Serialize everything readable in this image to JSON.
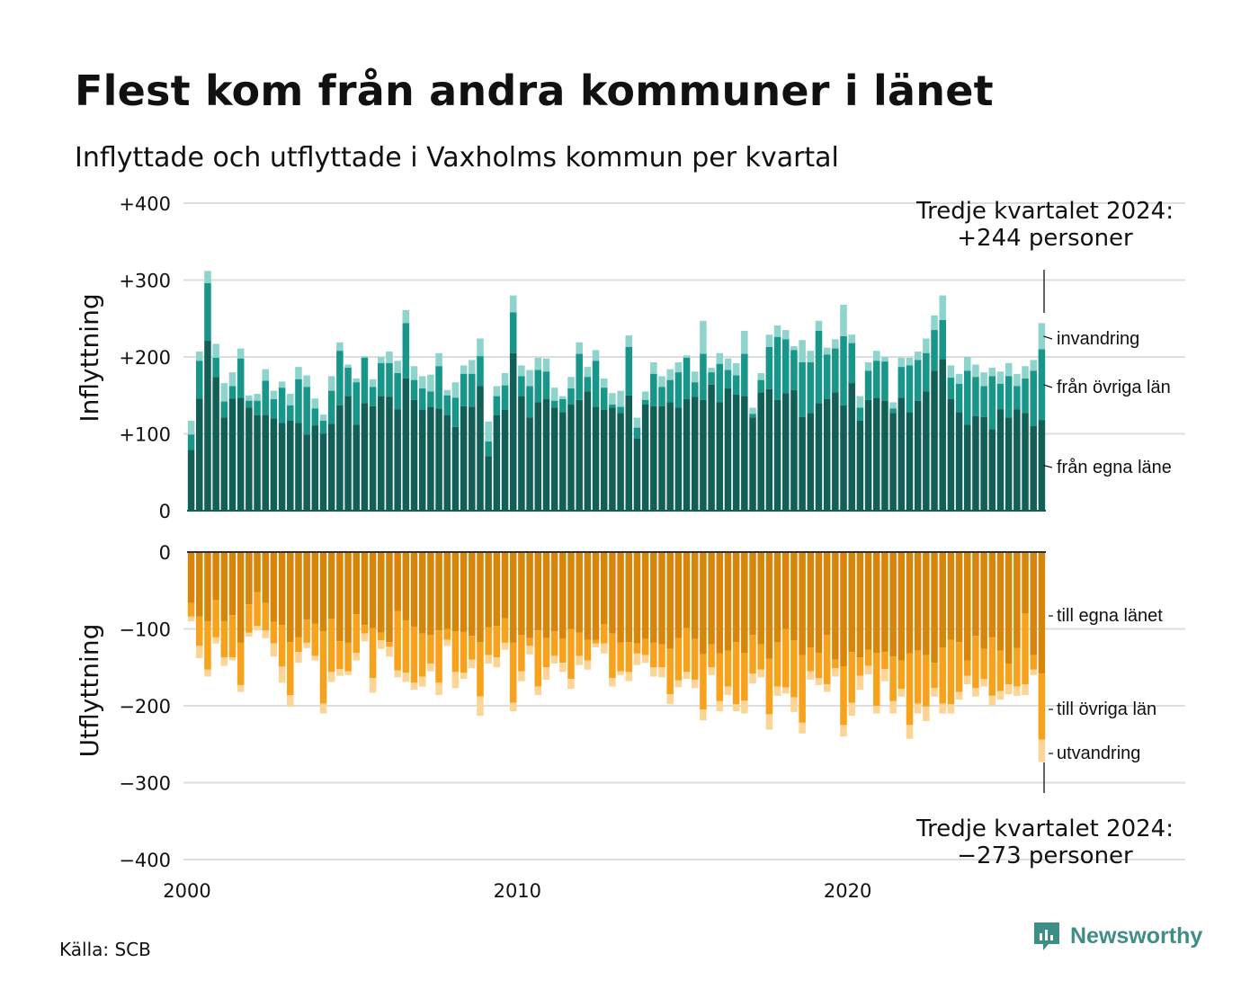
{
  "header": {
    "title": "Flest kom från andra kommuner i länet",
    "subtitle": "Inflyttade och utflyttade i Vaxholms kommun per kvartal"
  },
  "footer": {
    "source": "Källa: SCB",
    "brand": "Newsworthy"
  },
  "colors": {
    "in_own": "#125f58",
    "in_other": "#18968a",
    "in_imm": "#8fd4cc",
    "out_own": "#d6860a",
    "out_other": "#f7a21d",
    "out_emi": "#fbd496",
    "grid": "#dddddd",
    "zero": "#2a2f3a",
    "brand": "#3d8e86"
  },
  "chart_data": {
    "type": "bar",
    "stacked": true,
    "x_unit": "kvartal",
    "x_start": "2000 Q1",
    "x_end": "2024 Q3",
    "x_ticks": [
      "2000",
      "2010",
      "2020"
    ],
    "panels": [
      {
        "name": "inflyttning",
        "ylabel": "Inflyttning",
        "ylim": [
          0,
          400
        ],
        "y_ticks": [
          {
            "value": 400,
            "label": "+400"
          },
          {
            "value": 300,
            "label": "+300"
          },
          {
            "value": 200,
            "label": "+200"
          },
          {
            "value": 100,
            "label": "+100"
          },
          {
            "value": 0,
            "label": "0"
          }
        ],
        "series": [
          {
            "name": "från egna läne",
            "key": "own"
          },
          {
            "name": "från övriga län",
            "key": "other"
          },
          {
            "name": "invandring",
            "key": "imm"
          }
        ],
        "totals": [
          117,
          207,
          312,
          217,
          166,
          180,
          211,
          150,
          152,
          184,
          156,
          168,
          152,
          187,
          176,
          146,
          125,
          175,
          219,
          190,
          172,
          201,
          171,
          200,
          207,
          195,
          261,
          188,
          175,
          177,
          205,
          157,
          167,
          189,
          196,
          224,
          116,
          162,
          179,
          280,
          189,
          183,
          199,
          198,
          160,
          149,
          174,
          219,
          187,
          209,
          172,
          153,
          156,
          228,
          121,
          155,
          193,
          175,
          184,
          193,
          202,
          181,
          247,
          186,
          205,
          198,
          192,
          234,
          134,
          179,
          229,
          241,
          235,
          214,
          222,
          208,
          247,
          212,
          223,
          268,
          229,
          149,
          193,
          208,
          200,
          141,
          199,
          199,
          207,
          224,
          254,
          280,
          189,
          178,
          200,
          190,
          180,
          186,
          181,
          192,
          178,
          188,
          196,
          244
        ],
        "mid": [
          99,
          195,
          296,
          199,
          142,
          162,
          198,
          143,
          143,
          169,
          145,
          160,
          137,
          171,
          161,
          133,
          117,
          156,
          208,
          186,
          167,
          199,
          161,
          192,
          192,
          179,
          244,
          170,
          159,
          155,
          188,
          150,
          147,
          178,
          178,
          201,
          90,
          149,
          163,
          258,
          175,
          162,
          183,
          181,
          143,
          145,
          159,
          204,
          174,
          195,
          160,
          138,
          135,
          213,
          108,
          144,
          178,
          161,
          170,
          180,
          199,
          167,
          204,
          180,
          191,
          183,
          176,
          204,
          126,
          170,
          213,
          226,
          223,
          209,
          193,
          193,
          234,
          203,
          211,
          227,
          218,
          134,
          182,
          195,
          194,
          133,
          187,
          189,
          196,
          205,
          235,
          248,
          173,
          165,
          182,
          174,
          162,
          175,
          165,
          175,
          162,
          172,
          182,
          210
        ],
        "own": [
          79,
          146,
          221,
          174,
          121,
          146,
          147,
          134,
          124,
          124,
          120,
          114,
          117,
          114,
          99,
          111,
          100,
          113,
          137,
          149,
          112,
          140,
          136,
          149,
          148,
          132,
          172,
          144,
          131,
          135,
          133,
          124,
          109,
          136,
          135,
          162,
          71,
          124,
          131,
          205,
          149,
          121,
          141,
          145,
          134,
          128,
          138,
          144,
          155,
          135,
          131,
          134,
          127,
          150,
          94,
          138,
          136,
          136,
          141,
          134,
          145,
          148,
          144,
          164,
          141,
          159,
          151,
          149,
          121,
          154,
          158,
          144,
          153,
          157,
          122,
          127,
          140,
          145,
          154,
          137,
          166,
          117,
          144,
          147,
          143,
          127,
          147,
          128,
          143,
          155,
          182,
          197,
          145,
          128,
          112,
          123,
          122,
          106,
          132,
          121,
          132,
          127,
          110,
          118
        ]
      },
      {
        "name": "utflyttning",
        "ylabel": "Utflyttning",
        "ylim": [
          -400,
          0
        ],
        "y_ticks": [
          {
            "value": 0,
            "label": "0"
          },
          {
            "value": -100,
            "label": "−100"
          },
          {
            "value": -200,
            "label": "−200"
          },
          {
            "value": -300,
            "label": "−300"
          },
          {
            "value": -400,
            "label": "−400"
          }
        ],
        "series": [
          {
            "name": "till egna länet",
            "key": "own"
          },
          {
            "name": "till övriga län",
            "key": "other"
          },
          {
            "name": "utvandring",
            "key": "emi"
          }
        ],
        "totals": [
          90,
          138,
          162,
          119,
          148,
          141,
          182,
          110,
          102,
          112,
          136,
          170,
          201,
          144,
          125,
          141,
          210,
          169,
          161,
          160,
          141,
          116,
          183,
          126,
          136,
          163,
          169,
          179,
          175,
          155,
          186,
          122,
          177,
          165,
          151,
          213,
          145,
          150,
          127,
          207,
          168,
          133,
          186,
          166,
          145,
          156,
          178,
          147,
          153,
          124,
          132,
          175,
          160,
          168,
          147,
          144,
          162,
          163,
          198,
          176,
          165,
          177,
          219,
          160,
          207,
          186,
          207,
          210,
          171,
          163,
          231,
          187,
          184,
          208,
          236,
          166,
          173,
          182,
          162,
          240,
          213,
          179,
          159,
          210,
          168,
          210,
          188,
          243,
          210,
          220,
          188,
          210,
          210,
          192,
          172,
          188,
          175,
          200,
          192,
          185,
          187,
          186,
          160,
          273
        ],
        "mid": [
          84,
          122,
          153,
          111,
          137,
          137,
          173,
          105,
          96,
          102,
          119,
          149,
          186,
          130,
          118,
          135,
          197,
          156,
          152,
          155,
          131,
          106,
          164,
          115,
          123,
          154,
          157,
          170,
          162,
          145,
          170,
          114,
          156,
          157,
          140,
          188,
          134,
          137,
          118,
          196,
          155,
          122,
          175,
          150,
          135,
          144,
          165,
          135,
          141,
          119,
          119,
          164,
          155,
          156,
          132,
          134,
          150,
          150,
          185,
          167,
          156,
          166,
          205,
          150,
          194,
          175,
          198,
          193,
          158,
          153,
          211,
          175,
          176,
          189,
          222,
          155,
          164,
          172,
          151,
          225,
          196,
          161,
          148,
          200,
          152,
          194,
          178,
          225,
          197,
          201,
          177,
          197,
          198,
          182,
          161,
          177,
          165,
          187,
          181,
          172,
          175,
          172,
          153,
          244
        ],
        "own": [
          66,
          84,
          90,
          62,
          90,
          82,
          118,
          68,
          52,
          66,
          91,
          95,
          117,
          111,
          88,
          93,
          103,
          87,
          116,
          118,
          81,
          95,
          99,
          105,
          117,
          77,
          89,
          97,
          106,
          108,
          102,
          100,
          103,
          104,
          109,
          117,
          98,
          96,
          86,
          118,
          108,
          112,
          102,
          112,
          103,
          113,
          100,
          105,
          114,
          114,
          94,
          106,
          118,
          117,
          119,
          113,
          118,
          120,
          126,
          112,
          99,
          113,
          133,
          120,
          132,
          128,
          117,
          131,
          108,
          120,
          139,
          117,
          100,
          115,
          134,
          124,
          131,
          108,
          140,
          149,
          130,
          137,
          127,
          131,
          130,
          136,
          141,
          132,
          128,
          134,
          144,
          124,
          114,
          117,
          141,
          109,
          126,
          111,
          128,
          145,
          125,
          80,
          134,
          158
        ]
      }
    ],
    "annotations": [
      {
        "key": "callout_in",
        "lines": [
          "Tredje kvartalet 2024:",
          "+244 personer"
        ]
      },
      {
        "key": "callout_out",
        "lines": [
          "Tredje kvartalet 2024:",
          "−273 personer"
        ]
      }
    ]
  }
}
